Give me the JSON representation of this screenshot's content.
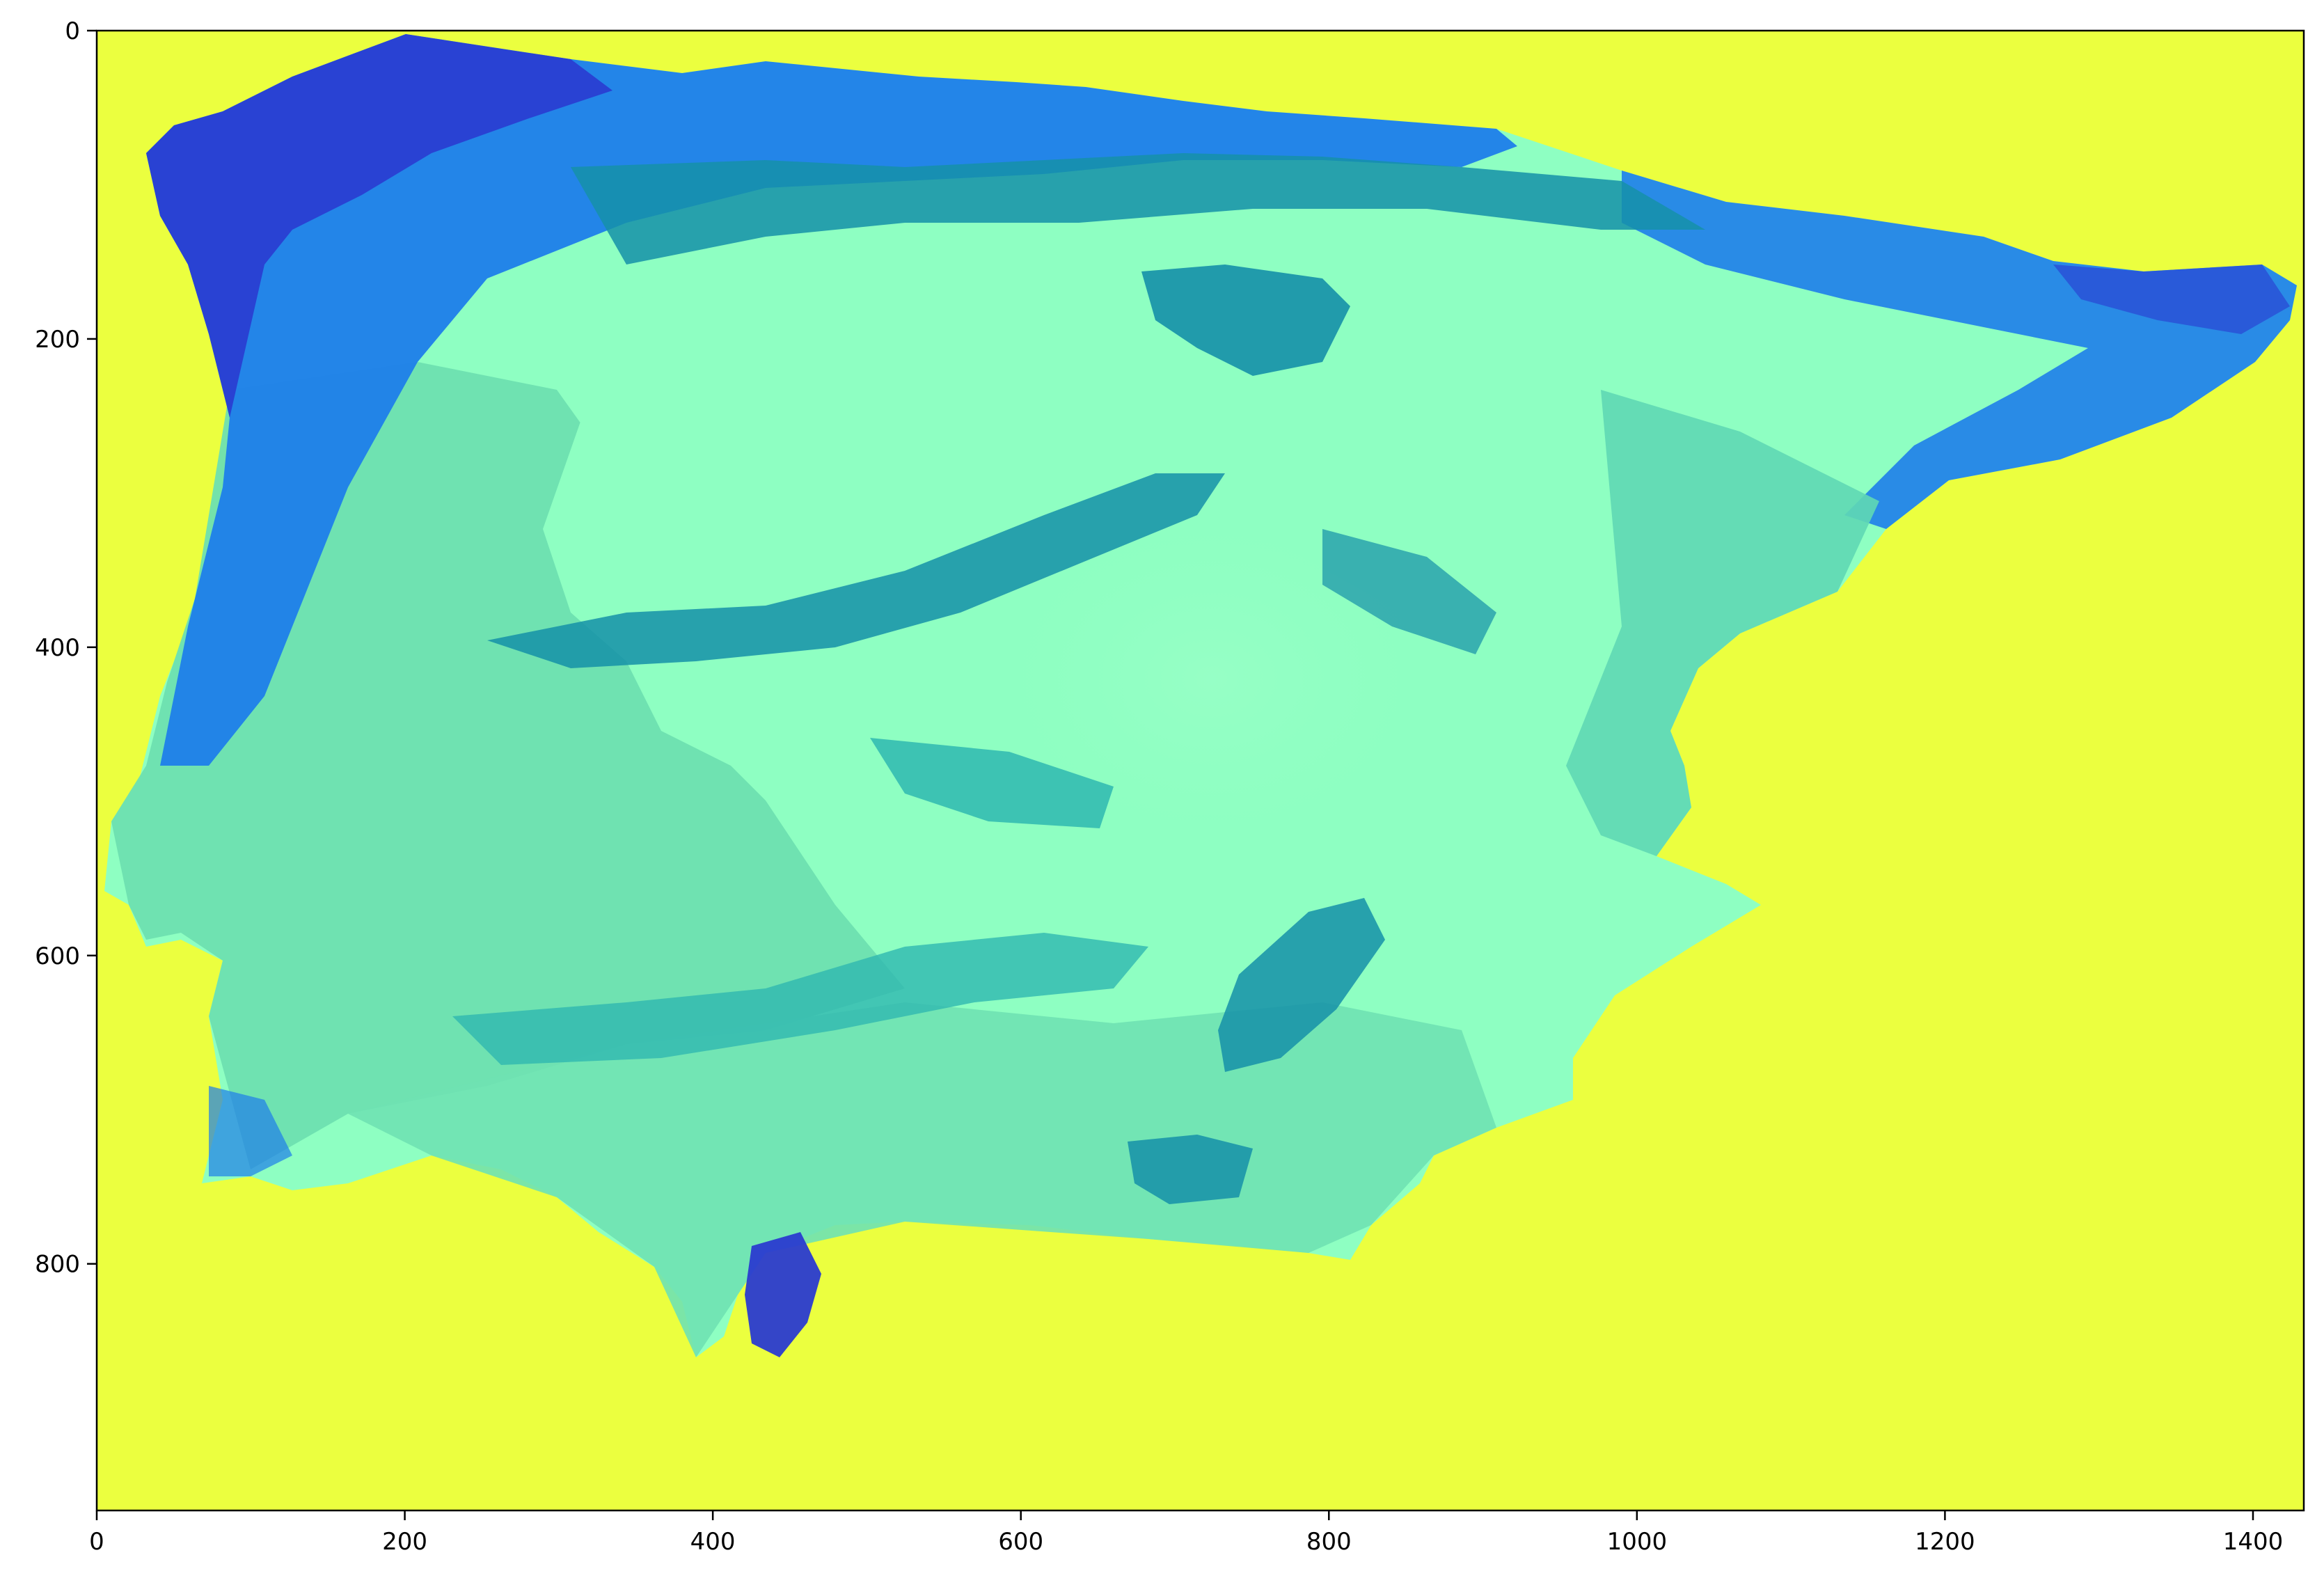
{
  "chart_data": {
    "type": "heatmap",
    "title": "",
    "xlabel": "",
    "ylabel": "",
    "xlim": [
      0,
      1433
    ],
    "ylim": [
      960,
      0
    ],
    "x_ticks": [
      0,
      200,
      400,
      600,
      800,
      1000,
      1200,
      1400
    ],
    "y_ticks": [
      0,
      200,
      400,
      600,
      800
    ],
    "x_tick_labels": [
      "0",
      "200",
      "400",
      "600",
      "800",
      "1000",
      "1200",
      "1400"
    ],
    "y_tick_labels": [
      "0",
      "200",
      "400",
      "600",
      "800"
    ],
    "grid": false,
    "legend": "none",
    "colormap": "jet-like (yellow background, cyan/green/blue land values)",
    "colors": {
      "background": "#EBFF3F",
      "land_light": "#8EFFC2",
      "land_mid": "#6EE0B0",
      "land_teal": "#2FB8B0",
      "land_dark_teal": "#1590A8",
      "land_blue": "#1E7EEA",
      "land_dark_blue": "#2A3BD0"
    }
  }
}
